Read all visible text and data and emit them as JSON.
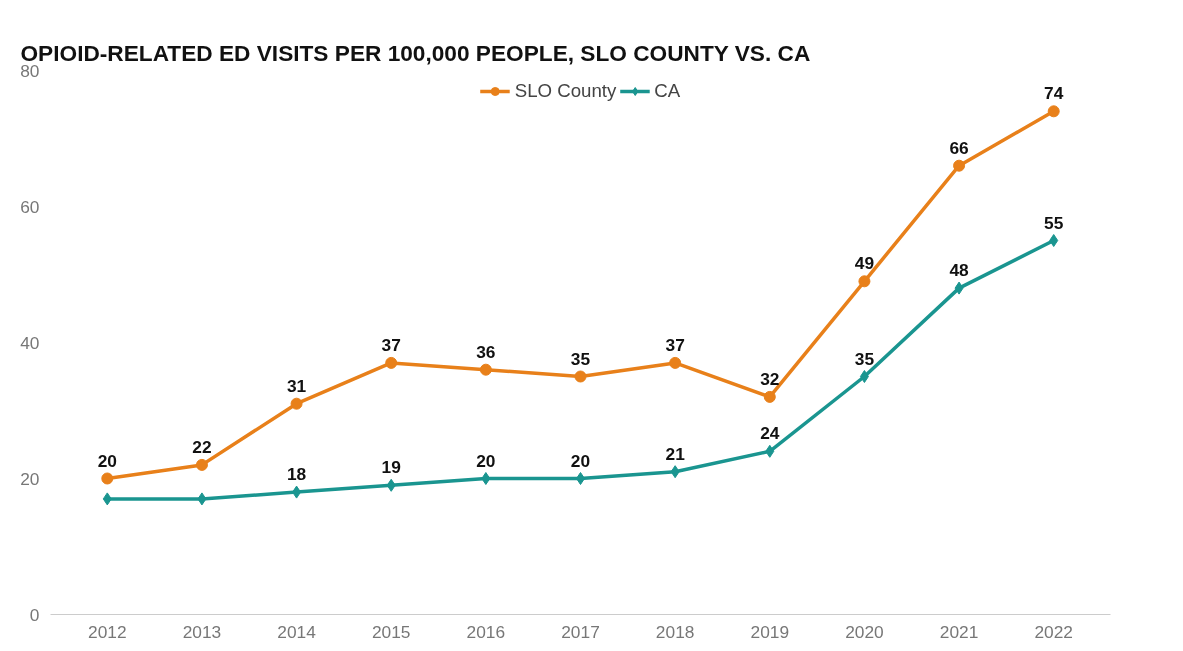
{
  "chart_data": {
    "type": "line",
    "title": "OPIOID-RELATED ED VISITS PER 100,000 PEOPLE, SLO COUNTY VS. CA",
    "categories": [
      "2012",
      "2013",
      "2014",
      "2015",
      "2016",
      "2017",
      "2018",
      "2019",
      "2020",
      "2021",
      "2022"
    ],
    "series": [
      {
        "name": "SLO County",
        "color": "#e8801a",
        "marker": "circle",
        "values": [
          20,
          22,
          31,
          37,
          36,
          35,
          37,
          32,
          49,
          66,
          74
        ],
        "value_labels": [
          "20",
          "22",
          "31",
          "37",
          "36",
          "35",
          "37",
          "32",
          "49",
          "66",
          "74"
        ]
      },
      {
        "name": "CA",
        "color": "#1a9590",
        "marker": "diamond",
        "values": [
          17,
          17,
          18,
          19,
          20,
          20,
          21,
          24,
          35,
          48,
          55
        ],
        "value_labels": [
          null,
          null,
          "18",
          "19",
          "20",
          "20",
          "21",
          "24",
          "35",
          "48",
          "55"
        ]
      }
    ],
    "ylim": [
      0,
      80
    ],
    "yticks": [
      0,
      20,
      40,
      60,
      80
    ],
    "grid": false,
    "legend": "top",
    "line_style": "solid"
  }
}
